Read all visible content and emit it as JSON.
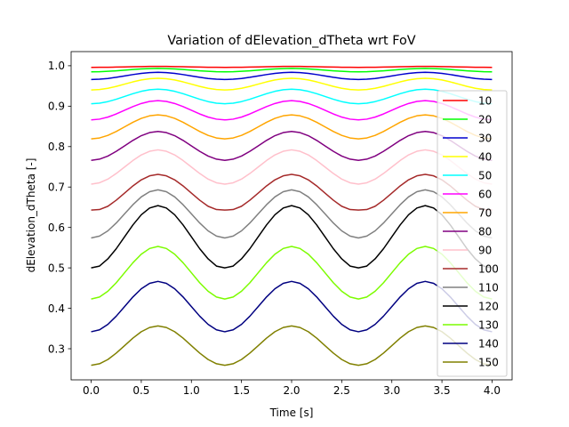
{
  "chart_data": {
    "type": "line",
    "title": "Variation of dElevation_dTheta wrt FoV",
    "xlabel": "Time [s]",
    "ylabel": "dElevation_dTheta [-]",
    "xlim": [
      -0.2,
      4.2
    ],
    "ylim": [
      0.223,
      1.035
    ],
    "xticks": [
      0.0,
      0.5,
      1.0,
      1.5,
      2.0,
      2.5,
      3.0,
      3.5,
      4.0
    ],
    "xtick_labels": [
      "0.0",
      "0.5",
      "1.0",
      "1.5",
      "2.0",
      "2.5",
      "3.0",
      "3.5",
      "4.0"
    ],
    "yticks": [
      0.3,
      0.4,
      0.5,
      0.6,
      0.7,
      0.8,
      0.9,
      1.0
    ],
    "ytick_labels": [
      "0.3",
      "0.4",
      "0.5",
      "0.6",
      "0.7",
      "0.8",
      "0.9",
      "1.0"
    ],
    "grid": false,
    "legend_position": "right",
    "x": [
      0.0,
      0.0833,
      0.1667,
      0.25,
      0.3333,
      0.4167,
      0.5,
      0.5833,
      0.6667,
      0.75,
      0.8333,
      0.9167,
      1.0,
      1.0833,
      1.1667,
      1.25,
      1.3333,
      1.4167,
      1.5,
      1.5833,
      1.6667,
      1.75,
      1.8333,
      1.9167,
      2.0,
      2.0833,
      2.1667,
      2.25,
      2.3333,
      2.4167,
      2.5,
      2.5833,
      2.6667,
      2.75,
      2.8333,
      2.9167,
      3.0,
      3.0833,
      3.1667,
      3.25,
      3.3333,
      3.4167,
      3.5,
      3.5833,
      3.6667,
      3.75,
      3.8333,
      3.9167,
      4.0
    ],
    "series": [
      {
        "name": "10",
        "color": "#ff0000",
        "values": [
          0.996,
          0.9961,
          0.9963,
          0.9967,
          0.9971,
          0.9975,
          0.9979,
          0.9983,
          0.9985,
          0.9983,
          0.9979,
          0.9975,
          0.9971,
          0.9967,
          0.9963,
          0.9961,
          0.996,
          0.9961,
          0.9963,
          0.9967,
          0.9971,
          0.9975,
          0.9979,
          0.9983,
          0.9985,
          0.9983,
          0.9979,
          0.9975,
          0.9971,
          0.9967,
          0.9963,
          0.9961,
          0.996,
          0.9961,
          0.9963,
          0.9967,
          0.9971,
          0.9975,
          0.9979,
          0.9983,
          0.9985,
          0.9983,
          0.9979,
          0.9975,
          0.9971,
          0.9967,
          0.9963,
          0.9961,
          0.996
        ]
      },
      {
        "name": "20",
        "color": "#00ff00",
        "values": [
          0.985,
          0.9853,
          0.9862,
          0.9875,
          0.9891,
          0.9907,
          0.9921,
          0.993,
          0.9934,
          0.993,
          0.9921,
          0.9907,
          0.9891,
          0.9875,
          0.9862,
          0.9853,
          0.985,
          0.9853,
          0.9862,
          0.9875,
          0.9891,
          0.9907,
          0.9921,
          0.993,
          0.9934,
          0.993,
          0.9921,
          0.9907,
          0.9891,
          0.9875,
          0.9862,
          0.9853,
          0.985,
          0.9853,
          0.9862,
          0.9875,
          0.9891,
          0.9907,
          0.9921,
          0.993,
          0.9934,
          0.993,
          0.9921,
          0.9907,
          0.9891,
          0.9875,
          0.9862,
          0.9853,
          0.985
        ]
      },
      {
        "name": "30",
        "color": "#0000cd",
        "values": [
          0.966,
          0.9667,
          0.9685,
          0.9714,
          0.9748,
          0.9782,
          0.9811,
          0.983,
          0.9837,
          0.983,
          0.9811,
          0.9782,
          0.9748,
          0.9714,
          0.9685,
          0.9667,
          0.966,
          0.9667,
          0.9685,
          0.9714,
          0.9748,
          0.9782,
          0.9811,
          0.983,
          0.9837,
          0.983,
          0.9811,
          0.9782,
          0.9748,
          0.9714,
          0.9685,
          0.9667,
          0.966,
          0.9667,
          0.9685,
          0.9714,
          0.9748,
          0.9782,
          0.9811,
          0.983,
          0.9837,
          0.983,
          0.9811,
          0.9782,
          0.9748,
          0.9714,
          0.9685,
          0.9667,
          0.966
        ]
      },
      {
        "name": "40",
        "color": "#ffff00",
        "values": [
          0.94,
          0.9411,
          0.9442,
          0.9489,
          0.9545,
          0.9601,
          0.9648,
          0.9679,
          0.969,
          0.9679,
          0.9648,
          0.9601,
          0.9545,
          0.9489,
          0.9442,
          0.9411,
          0.94,
          0.9411,
          0.9442,
          0.9489,
          0.9545,
          0.9601,
          0.9648,
          0.9679,
          0.969,
          0.9679,
          0.9648,
          0.9601,
          0.9545,
          0.9489,
          0.9442,
          0.9411,
          0.94,
          0.9411,
          0.9442,
          0.9489,
          0.9545,
          0.9601,
          0.9648,
          0.9679,
          0.969,
          0.9679,
          0.9648,
          0.9601,
          0.9545,
          0.9489,
          0.9442,
          0.9411,
          0.94
        ]
      },
      {
        "name": "50",
        "color": "#00ffff",
        "values": [
          0.906,
          0.9074,
          0.9113,
          0.9171,
          0.924,
          0.9309,
          0.9367,
          0.9406,
          0.942,
          0.9406,
          0.9367,
          0.9309,
          0.924,
          0.9171,
          0.9113,
          0.9074,
          0.906,
          0.9074,
          0.9113,
          0.9171,
          0.924,
          0.9309,
          0.9367,
          0.9406,
          0.942,
          0.9406,
          0.9367,
          0.9309,
          0.924,
          0.9171,
          0.9113,
          0.9074,
          0.906,
          0.9074,
          0.9113,
          0.9171,
          0.924,
          0.9309,
          0.9367,
          0.9406,
          0.942,
          0.9406,
          0.9367,
          0.9309,
          0.924,
          0.9171,
          0.9113,
          0.9074,
          0.906
        ]
      },
      {
        "name": "60",
        "color": "#ff00ff",
        "values": [
          0.866,
          0.8679,
          0.873,
          0.8807,
          0.8898,
          0.8989,
          0.9066,
          0.9117,
          0.9136,
          0.9117,
          0.9066,
          0.8989,
          0.8898,
          0.8807,
          0.873,
          0.8679,
          0.866,
          0.8679,
          0.873,
          0.8807,
          0.8898,
          0.8989,
          0.9066,
          0.9117,
          0.9136,
          0.9117,
          0.9066,
          0.8989,
          0.8898,
          0.8807,
          0.873,
          0.8679,
          0.866,
          0.8679,
          0.873,
          0.8807,
          0.8898,
          0.8989,
          0.9066,
          0.9117,
          0.9136,
          0.9117,
          0.9066,
          0.8989,
          0.8898,
          0.8807,
          0.873,
          0.8679,
          0.866
        ]
      },
      {
        "name": "70",
        "color": "#ffa500",
        "values": [
          0.819,
          0.8214,
          0.8278,
          0.8374,
          0.8488,
          0.8602,
          0.8698,
          0.8762,
          0.8786,
          0.8762,
          0.8698,
          0.8602,
          0.8488,
          0.8374,
          0.8278,
          0.8214,
          0.819,
          0.8214,
          0.8278,
          0.8374,
          0.8488,
          0.8602,
          0.8698,
          0.8762,
          0.8786,
          0.8762,
          0.8698,
          0.8602,
          0.8488,
          0.8374,
          0.8278,
          0.8214,
          0.819,
          0.8214,
          0.8278,
          0.8374,
          0.8488,
          0.8602,
          0.8698,
          0.8762,
          0.8786,
          0.8762,
          0.8698,
          0.8602,
          0.8488,
          0.8374,
          0.8278,
          0.8214,
          0.819
        ]
      },
      {
        "name": "80",
        "color": "#800080",
        "values": [
          0.766,
          0.7689,
          0.7766,
          0.7882,
          0.8018,
          0.8154,
          0.827,
          0.8347,
          0.8376,
          0.8347,
          0.827,
          0.8154,
          0.8018,
          0.7882,
          0.7766,
          0.7689,
          0.766,
          0.7689,
          0.7766,
          0.7882,
          0.8018,
          0.8154,
          0.827,
          0.8347,
          0.8376,
          0.8347,
          0.827,
          0.8154,
          0.8018,
          0.7882,
          0.7766,
          0.7689,
          0.766,
          0.7689,
          0.7766,
          0.7882,
          0.8018,
          0.8154,
          0.827,
          0.8347,
          0.8376,
          0.8347,
          0.827,
          0.8154,
          0.8018,
          0.7882,
          0.7766,
          0.7689,
          0.766
        ]
      },
      {
        "name": "90",
        "color": "#ffc0cb",
        "values": [
          0.707,
          0.7105,
          0.7196,
          0.7334,
          0.7495,
          0.7656,
          0.7794,
          0.7885,
          0.792,
          0.7885,
          0.7794,
          0.7656,
          0.7495,
          0.7334,
          0.7196,
          0.7105,
          0.707,
          0.7105,
          0.7196,
          0.7334,
          0.7495,
          0.7656,
          0.7794,
          0.7885,
          0.792,
          0.7885,
          0.7794,
          0.7656,
          0.7495,
          0.7334,
          0.7196,
          0.7105,
          0.707,
          0.7105,
          0.7196,
          0.7334,
          0.7495,
          0.7656,
          0.7794,
          0.7885,
          0.792,
          0.7885,
          0.7794,
          0.7656,
          0.7495,
          0.7334,
          0.7196,
          0.7105,
          0.707
        ]
      },
      {
        "name": "100",
        "color": "#a52a2a",
        "values": [
          0.643,
          0.6443,
          0.6524,
          0.6674,
          0.6851,
          0.7028,
          0.7178,
          0.7277,
          0.7314,
          0.7277,
          0.7178,
          0.7028,
          0.6851,
          0.6674,
          0.6524,
          0.6443,
          0.643,
          0.6443,
          0.6524,
          0.6674,
          0.6851,
          0.7028,
          0.7178,
          0.7277,
          0.7314,
          0.7277,
          0.7178,
          0.7028,
          0.6851,
          0.6674,
          0.6524,
          0.6443,
          0.643,
          0.6443,
          0.6524,
          0.6674,
          0.6851,
          0.7028,
          0.7178,
          0.7277,
          0.7314,
          0.7277,
          0.7178,
          0.7028,
          0.6851,
          0.6674,
          0.6524,
          0.6443,
          0.643
        ]
      },
      {
        "name": "110",
        "color": "#808080",
        "values": [
          0.574,
          0.5787,
          0.5916,
          0.6109,
          0.6336,
          0.6563,
          0.6756,
          0.6885,
          0.693,
          0.6885,
          0.6756,
          0.6563,
          0.6336,
          0.6109,
          0.5916,
          0.5787,
          0.574,
          0.5787,
          0.5916,
          0.6109,
          0.6336,
          0.6563,
          0.6756,
          0.6885,
          0.693,
          0.6885,
          0.6756,
          0.6563,
          0.6336,
          0.6109,
          0.5916,
          0.5787,
          0.574,
          0.5787,
          0.5916,
          0.6109,
          0.6336,
          0.6563,
          0.6756,
          0.6885,
          0.693,
          0.6885,
          0.6756,
          0.6563,
          0.6336,
          0.6109,
          0.5916,
          0.5787,
          0.574
        ]
      },
      {
        "name": "120",
        "color": "#000000",
        "values": [
          0.5,
          0.5045,
          0.5223,
          0.5473,
          0.5768,
          0.6063,
          0.6313,
          0.6481,
          0.654,
          0.6481,
          0.6313,
          0.6063,
          0.5768,
          0.5473,
          0.5223,
          0.5045,
          0.5,
          0.5045,
          0.5223,
          0.5473,
          0.5768,
          0.6063,
          0.6313,
          0.6481,
          0.654,
          0.6481,
          0.6313,
          0.6063,
          0.5768,
          0.5473,
          0.5223,
          0.5045,
          0.5,
          0.5045,
          0.5223,
          0.5473,
          0.5768,
          0.6063,
          0.6313,
          0.6481,
          0.654,
          0.6481,
          0.6313,
          0.6063,
          0.5768,
          0.5473,
          0.5223,
          0.5045,
          0.5
        ]
      },
      {
        "name": "130",
        "color": "#7cfc00",
        "values": [
          0.423,
          0.428,
          0.4422,
          0.4632,
          0.488,
          0.5128,
          0.5338,
          0.548,
          0.553,
          0.548,
          0.5338,
          0.5128,
          0.488,
          0.4632,
          0.4422,
          0.428,
          0.423,
          0.428,
          0.4422,
          0.4632,
          0.488,
          0.5128,
          0.5338,
          0.548,
          0.553,
          0.548,
          0.5338,
          0.5128,
          0.488,
          0.4632,
          0.4422,
          0.428,
          0.423,
          0.428,
          0.4422,
          0.4632,
          0.488,
          0.5128,
          0.5338,
          0.548,
          0.553,
          0.548,
          0.5338,
          0.5128,
          0.488,
          0.4632,
          0.4422,
          0.428,
          0.423
        ]
      },
      {
        "name": "140",
        "color": "#000080",
        "values": [
          0.342,
          0.3468,
          0.3603,
          0.3805,
          0.4043,
          0.4281,
          0.4483,
          0.4618,
          0.4666,
          0.4618,
          0.4483,
          0.4281,
          0.4043,
          0.3805,
          0.3603,
          0.3468,
          0.342,
          0.3468,
          0.3603,
          0.3805,
          0.4043,
          0.4281,
          0.4483,
          0.4618,
          0.4666,
          0.4618,
          0.4483,
          0.4281,
          0.4043,
          0.3805,
          0.3603,
          0.3468,
          0.342,
          0.3468,
          0.3603,
          0.3805,
          0.4043,
          0.4281,
          0.4483,
          0.4618,
          0.4666,
          0.4618,
          0.4483,
          0.4281,
          0.4043,
          0.3805,
          0.3603,
          0.3468,
          0.342
        ]
      },
      {
        "name": "150",
        "color": "#808000",
        "values": [
          0.259,
          0.2628,
          0.2733,
          0.2891,
          0.3077,
          0.3263,
          0.3421,
          0.3526,
          0.3564,
          0.3526,
          0.3421,
          0.3263,
          0.3077,
          0.2891,
          0.2733,
          0.2628,
          0.259,
          0.2628,
          0.2733,
          0.2891,
          0.3077,
          0.3263,
          0.3421,
          0.3526,
          0.3564,
          0.3526,
          0.3421,
          0.3263,
          0.3077,
          0.2891,
          0.2733,
          0.2628,
          0.259,
          0.2628,
          0.2733,
          0.2891,
          0.3077,
          0.3263,
          0.3421,
          0.3526,
          0.3564,
          0.3526,
          0.3421,
          0.3263,
          0.3077,
          0.2891,
          0.2733,
          0.2628,
          0.259
        ]
      }
    ]
  }
}
